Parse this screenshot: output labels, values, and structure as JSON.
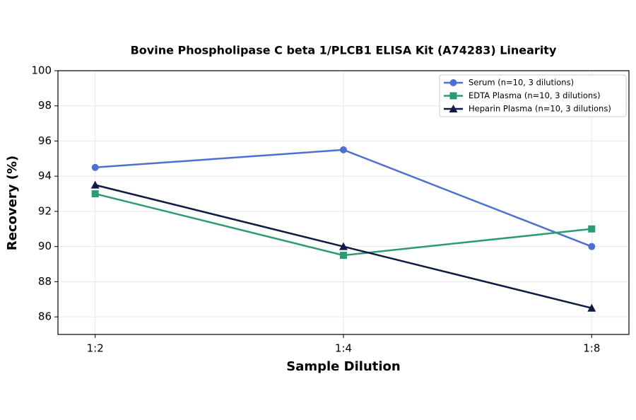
{
  "chart_data": {
    "type": "line",
    "title": "Bovine Phospholipase C beta 1/PLCB1 ELISA Kit (A74283) Linearity",
    "x_label": "Sample Dilution",
    "y_label": "Recovery (%)",
    "categories": [
      "1:2",
      "1:4",
      "1:8"
    ],
    "series": [
      {
        "name": "Serum (n=10, 3 dilutions)",
        "color": "#4f70d3",
        "marker": "circle",
        "values": [
          94.5,
          95.5,
          90
        ]
      },
      {
        "name": "EDTA Plasma (n=10, 3 dilutions)",
        "color": "#2a9b74",
        "marker": "square",
        "values": [
          93,
          89.5,
          91
        ]
      },
      {
        "name": "Heparin Plasma (n=10, 3 dilutions)",
        "color": "#0f1a45",
        "marker": "triangle",
        "values": [
          93.5,
          90,
          86.5
        ]
      }
    ],
    "ylim": [
      85,
      100
    ],
    "yticks": [
      86,
      88,
      90,
      92,
      94,
      96,
      98,
      100
    ],
    "grid": true,
    "legend": "upper right"
  }
}
